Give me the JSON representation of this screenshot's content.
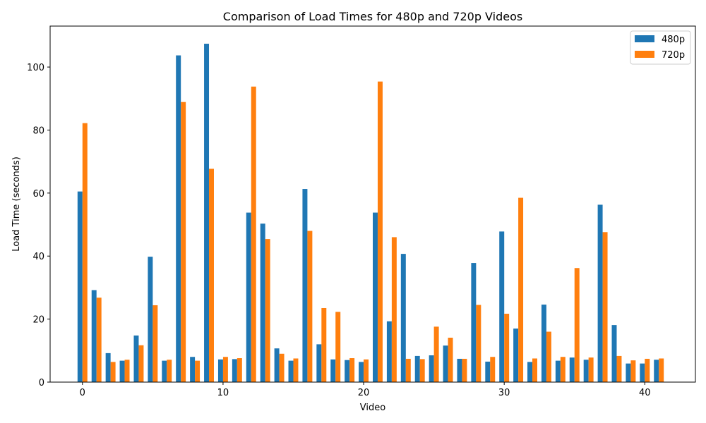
{
  "chart_data": {
    "type": "bar",
    "title": "Comparison of Load Times for 480p and 720p Videos",
    "xlabel": "Video",
    "ylabel": "Load Time (seconds)",
    "xlim": [
      -2.3,
      43.6
    ],
    "ylim": [
      0,
      113
    ],
    "xticks": [
      0,
      10,
      20,
      30,
      40
    ],
    "yticks": [
      0,
      20,
      40,
      60,
      80,
      100
    ],
    "grid": false,
    "legend_position": "top-right",
    "x": [
      0,
      1,
      2,
      3,
      4,
      5,
      6,
      7,
      8,
      9,
      10,
      11,
      12,
      13,
      14,
      15,
      16,
      17,
      18,
      19,
      20,
      21,
      22,
      23,
      24,
      25,
      26,
      27,
      28,
      29,
      30,
      31,
      32,
      33,
      34,
      35,
      36,
      37,
      38,
      39,
      40,
      41
    ],
    "series": [
      {
        "name": "480p",
        "color": "#1f77b4",
        "values": [
          60.5,
          29.2,
          9.2,
          6.8,
          14.8,
          39.8,
          6.8,
          103.7,
          8.0,
          107.4,
          7.2,
          7.3,
          53.8,
          50.3,
          10.7,
          6.8,
          61.3,
          12.0,
          7.2,
          7.0,
          6.4,
          53.8,
          19.3,
          40.7,
          8.3,
          8.5,
          11.6,
          7.4,
          37.8,
          6.5,
          47.8,
          17.0,
          6.4,
          24.6,
          6.8,
          7.8,
          7.1,
          56.3,
          18.1,
          5.9,
          5.9,
          7.1
        ]
      },
      {
        "name": "720p",
        "color": "#ff7f0e",
        "values": [
          82.2,
          26.8,
          6.4,
          7.1,
          11.7,
          24.4,
          7.1,
          88.9,
          6.8,
          67.7,
          8.0,
          7.6,
          93.8,
          45.4,
          9.0,
          7.5,
          48.0,
          23.5,
          22.3,
          7.6,
          7.2,
          95.4,
          46.0,
          7.4,
          7.3,
          17.6,
          14.1,
          7.4,
          24.5,
          8.0,
          21.7,
          58.5,
          7.5,
          16.0,
          8.0,
          36.2,
          7.8,
          47.6,
          8.3,
          6.9,
          7.4,
          7.5
        ]
      }
    ]
  }
}
